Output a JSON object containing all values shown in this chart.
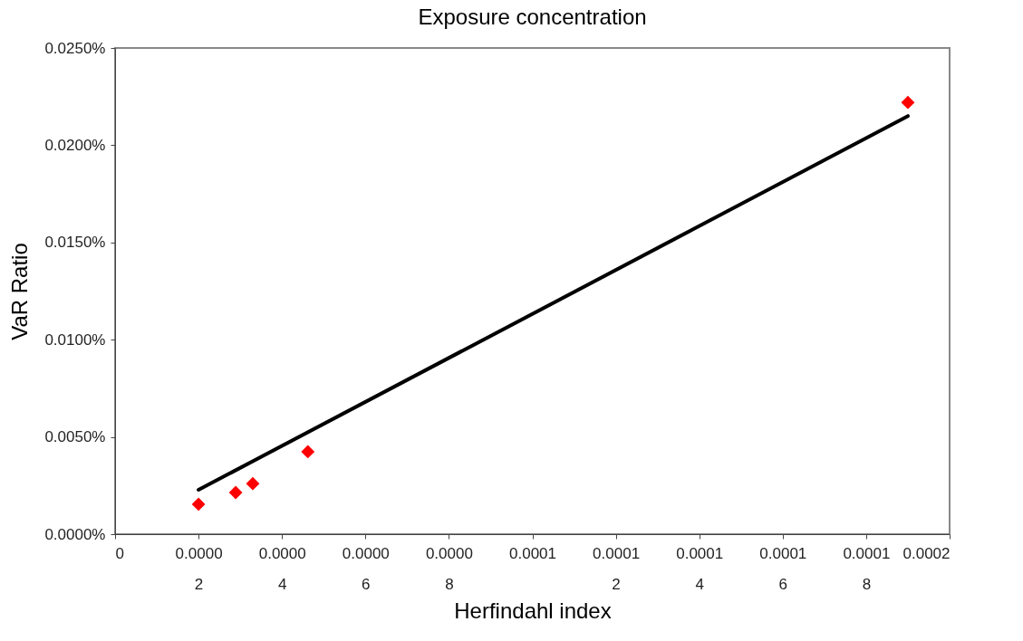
{
  "chart_data": {
    "type": "scatter",
    "title": "Exposure concentration",
    "xlabel": "Herfindahl index",
    "ylabel": "VaR Ratio",
    "marker": "diamond",
    "grid": false,
    "xlim": [
      0,
      0.0002
    ],
    "xticks": [
      0,
      {
        "value": 2e-05,
        "label": "0.00002"
      },
      {
        "value": 4e-05,
        "label": "0.00004"
      },
      {
        "value": 6e-05,
        "label": "0.00006"
      },
      {
        "value": 8e-05,
        "label": "0.00008"
      },
      {
        "value": 0.0001,
        "label": "0.0001"
      },
      {
        "value": 0.00012,
        "label": "0.00012"
      },
      {
        "value": 0.00014,
        "label": "0.00014"
      },
      {
        "value": 0.00016,
        "label": "0.00016"
      },
      {
        "value": 0.00018,
        "label": "0.00018"
      },
      {
        "value": 0.0002,
        "label": "0.0002"
      }
    ],
    "ylim": [
      0,
      0.025
    ],
    "yticks": [
      {
        "value": 0,
        "label": "0.0000%"
      },
      {
        "value": 0.005,
        "label": "0.0050%"
      },
      {
        "value": 0.01,
        "label": "0.0100%"
      },
      {
        "value": 0.015,
        "label": "0.0150%"
      },
      {
        "value": 0.02,
        "label": "0.0200%"
      },
      {
        "value": 0.025,
        "label": "0.0250%"
      }
    ],
    "series": [
      {
        "color": "#ff0000",
        "x": [
          2e-05,
          2.89e-05,
          3.3e-05,
          4.62e-05,
          0.00019
        ],
        "values": [
          0.00154,
          0.00214,
          0.0026,
          0.00424,
          0.0222
        ]
      },
      {
        "type": "line",
        "color": "#000000",
        "marker": "none",
        "x": [
          2e-05,
          0.00019
        ],
        "values": [
          0.00228,
          0.0215
        ]
      }
    ]
  }
}
